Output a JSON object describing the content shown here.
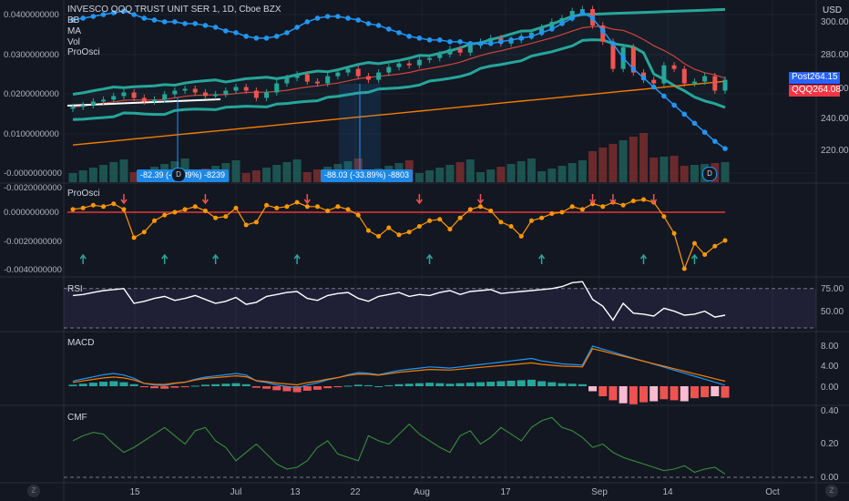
{
  "header": {
    "title": "INVESCO QQQ TRUST UNIT SER 1, 1D, Cboe BZX",
    "indicators": [
      "BB",
      "MA",
      "Vol",
      "ProOsci"
    ],
    "currency": "USD"
  },
  "price_labels": {
    "post_label": "Post",
    "post_value": "264.15",
    "post_color": "#2962ff",
    "qqq_label": "QQQ",
    "qqq_value": "264.08",
    "qqq_color": "#f23645"
  },
  "measurements": [
    {
      "text": "-82.39 (-32.39%) -8239",
      "badge": "D"
    },
    {
      "text": "-88.03 (-33.89%) -8803",
      "badge": "D"
    }
  ],
  "icons": {
    "event_badge": "D"
  },
  "axes": {
    "left_main": [
      "0.0400000000",
      "0.0300000000",
      "0.0200000000",
      "0.0100000000",
      "-0.0000000000"
    ],
    "right_main": [
      "300.00",
      "280.00",
      "260.00",
      "240.00",
      "220.00"
    ],
    "left_proosci": [
      "-0.0020000000",
      "0.0000000000",
      "-0.0020000000",
      "-0.0040000000"
    ],
    "rsi": [
      "75.00",
      "50.00"
    ],
    "macd": [
      "8.00",
      "4.00",
      "0.00"
    ],
    "cmf": [
      "0.40",
      "0.20",
      "0.00"
    ],
    "time": [
      "15",
      "Jul",
      "13",
      "22",
      "Aug",
      "17",
      "Sep",
      "14",
      "Oct"
    ]
  },
  "panes": {
    "proosci": "ProOsci",
    "rsi": "RSI",
    "macd": "MACD",
    "cmf": "CMF"
  },
  "footer": {
    "left_icon": "Z",
    "right_icon": "Z"
  },
  "colors": {
    "up": "#26a69a",
    "down": "#ef5350",
    "bb": "#26a69a",
    "ma_slow": "#f57c00",
    "blue_dots": "#2196f3",
    "proosci": "#ff9800"
  },
  "chart_data": [
    {
      "type": "line",
      "name": "price",
      "yrange": [
        210,
        305
      ],
      "close": [
        249,
        250,
        252,
        253,
        255,
        257,
        254,
        252,
        253,
        256,
        258,
        259,
        257,
        255,
        256,
        258,
        260,
        258,
        254,
        257,
        262,
        265,
        267,
        263,
        262,
        266,
        268,
        270,
        266,
        264,
        268,
        271,
        273,
        272,
        275,
        276,
        278,
        281,
        279,
        283,
        285,
        287,
        284,
        286,
        288,
        290,
        293,
        296,
        298,
        302,
        303,
        294,
        285,
        270,
        282,
        268,
        264,
        262,
        272,
        270,
        262,
        263,
        266,
        258,
        264
      ]
    },
    {
      "type": "line",
      "name": "ProOsci",
      "values": [
        0.0002,
        0.0003,
        0.0005,
        0.0004,
        0.0006,
        0.0002,
        -0.0018,
        -0.0014,
        -0.0006,
        -0.0002,
        0.0,
        0.0002,
        0.0004,
        0.0001,
        -0.0004,
        -0.0003,
        0.0003,
        -0.0009,
        -0.0007,
        0.0005,
        0.0003,
        0.0004,
        0.0007,
        0.0004,
        0.0004,
        0.0001,
        0.0004,
        0.0002,
        -0.0002,
        -0.0013,
        -0.0017,
        -0.0011,
        -0.0016,
        -0.0014,
        -0.001,
        -0.0006,
        -0.0005,
        -0.0012,
        -0.0004,
        0.0002,
        0.0004,
        0.0001,
        -0.0007,
        -0.001,
        -0.0017,
        -0.0006,
        -0.0004,
        -0.0001,
        0.0,
        0.0004,
        0.0002,
        0.0006,
        0.0004,
        0.0007,
        0.0005,
        0.0008,
        0.0009,
        0.0007,
        -0.0003,
        -0.0015,
        -0.004,
        -0.0022,
        -0.003,
        -0.0024,
        -0.002
      ]
    },
    {
      "type": "line",
      "name": "RSI",
      "values": [
        63,
        64,
        66,
        68,
        69,
        70,
        55,
        57,
        60,
        62,
        58,
        60,
        63,
        59,
        55,
        57,
        61,
        54,
        56,
        62,
        64,
        66,
        67,
        60,
        58,
        63,
        65,
        66,
        60,
        57,
        62,
        64,
        66,
        62,
        64,
        63,
        66,
        68,
        64,
        67,
        68,
        69,
        65,
        66,
        67,
        68,
        69,
        70,
        72,
        76,
        77,
        59,
        52,
        38,
        55,
        45,
        44,
        42,
        50,
        47,
        43,
        44,
        47,
        41,
        43
      ]
    },
    {
      "type": "bar",
      "name": "MACD histogram",
      "values": [
        0.3,
        0.5,
        0.7,
        0.9,
        1.0,
        0.8,
        0.4,
        -0.2,
        -0.4,
        -0.5,
        -0.3,
        -0.2,
        0.1,
        0.3,
        0.4,
        0.5,
        0.6,
        0.4,
        -0.3,
        -0.5,
        -0.8,
        -1.0,
        -1.2,
        -0.9,
        -0.7,
        -0.4,
        -0.2,
        0.1,
        0.3,
        0.2,
        0.0,
        0.2,
        0.4,
        0.5,
        0.6,
        0.7,
        0.6,
        0.5,
        0.6,
        0.7,
        0.8,
        0.9,
        1.0,
        1.1,
        1.2,
        1.3,
        1.0,
        0.8,
        0.6,
        0.5,
        0.4,
        -1.0,
        -2.0,
        -2.8,
        -3.4,
        -3.6,
        -3.2,
        -3.0,
        -2.6,
        -2.8,
        -3.0,
        -2.4,
        -2.2,
        -2.0,
        -2.3
      ]
    },
    {
      "type": "line",
      "name": "CMF",
      "values": [
        0.22,
        0.25,
        0.27,
        0.26,
        0.2,
        0.15,
        0.18,
        0.22,
        0.26,
        0.3,
        0.25,
        0.2,
        0.28,
        0.3,
        0.22,
        0.18,
        0.1,
        0.15,
        0.2,
        0.14,
        0.08,
        0.05,
        0.06,
        0.1,
        0.18,
        0.22,
        0.14,
        0.12,
        0.1,
        0.25,
        0.22,
        0.2,
        0.26,
        0.32,
        0.26,
        0.22,
        0.18,
        0.15,
        0.25,
        0.28,
        0.2,
        0.24,
        0.3,
        0.26,
        0.22,
        0.3,
        0.34,
        0.36,
        0.3,
        0.28,
        0.24,
        0.18,
        0.2,
        0.15,
        0.12,
        0.1,
        0.08,
        0.06,
        0.04,
        0.05,
        0.07,
        0.03,
        0.05,
        0.06,
        0.02
      ]
    }
  ]
}
